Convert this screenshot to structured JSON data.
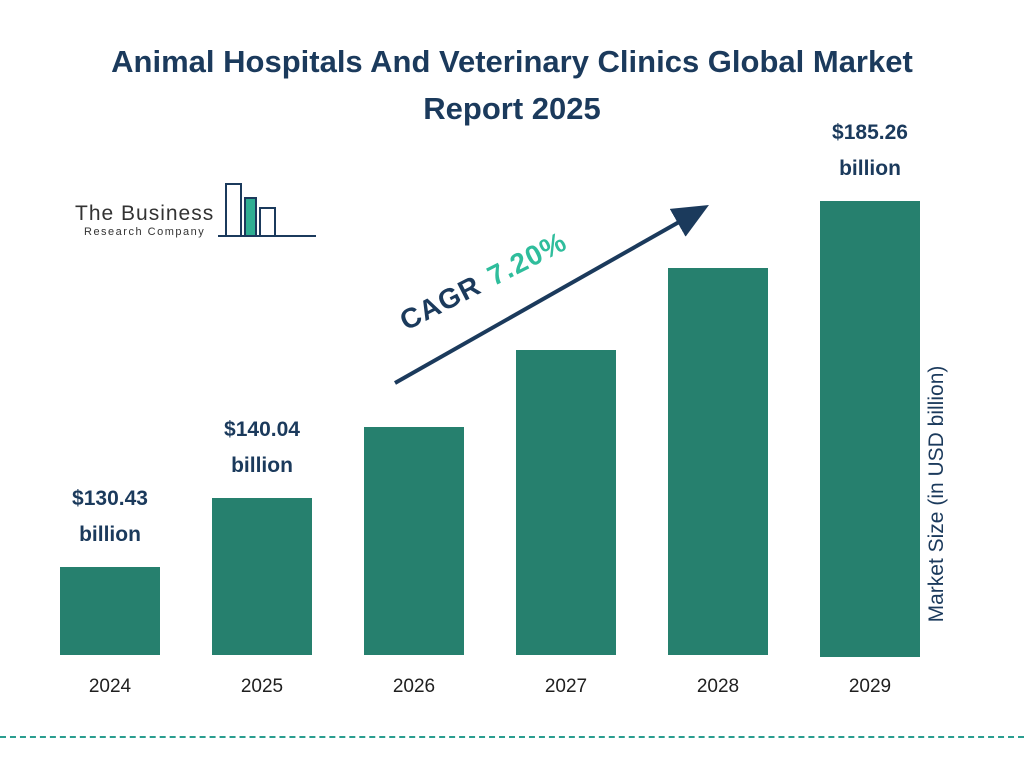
{
  "title": "Animal Hospitals And Veterinary Clinics Global Market Report 2025",
  "logo": {
    "line1": "The Business",
    "line2": "Research Company"
  },
  "cagr": {
    "prefix": "CAGR",
    "value": "7.20%"
  },
  "colors": {
    "bar": "#26806e",
    "navy": "#1b3a5c",
    "accent": "#2fbd9c",
    "dashed": "#2a9d8f"
  },
  "chart_data": {
    "type": "bar",
    "title": "Animal Hospitals And Veterinary Clinics Global Market Report 2025",
    "categories": [
      "2024",
      "2025",
      "2026",
      "2027",
      "2028",
      "2029"
    ],
    "values": [
      130.43,
      140.04,
      150.12,
      160.93,
      172.51,
      185.26
    ],
    "labeled_points": [
      {
        "index": 0,
        "amount": "$130.43",
        "unit": "billion"
      },
      {
        "index": 1,
        "amount": "$140.04",
        "unit": "billion"
      },
      {
        "index": 5,
        "amount": "$185.26",
        "unit": "billion"
      }
    ],
    "annotation": "CAGR 7.20%",
    "xlabel": "",
    "ylabel": "Market Size (in USD billion)",
    "legend": "none",
    "grid": false
  }
}
